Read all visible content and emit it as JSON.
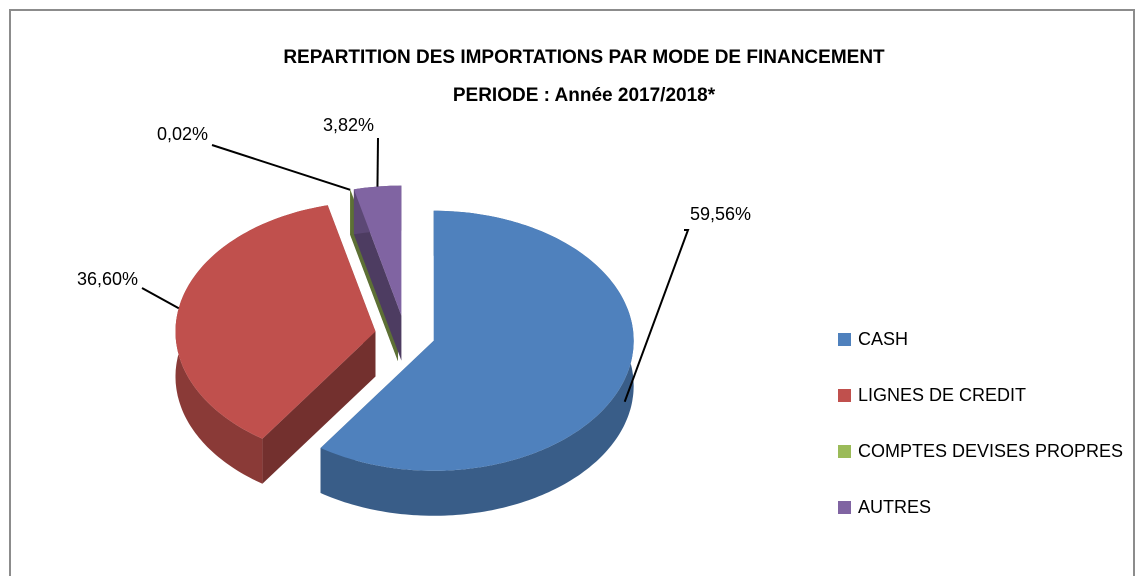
{
  "chart_data": {
    "type": "pie",
    "title": "REPARTITION DES IMPORTATIONS PAR MODE DE FINANCEMENT",
    "subtitle": "PERIODE : Année 2017/2018*",
    "categories": [
      "CASH",
      "LIGNES DE CREDIT",
      "COMPTES DEVISES PROPRES",
      "AUTRES"
    ],
    "values": [
      59.56,
      36.6,
      0.02,
      3.82
    ],
    "value_labels": [
      "59,56%",
      "36,60%",
      "0,02%",
      "3,82%"
    ],
    "colors": [
      "#4f81bd",
      "#c0504d",
      "#9bbb59",
      "#8064a2"
    ],
    "legend": "right"
  }
}
